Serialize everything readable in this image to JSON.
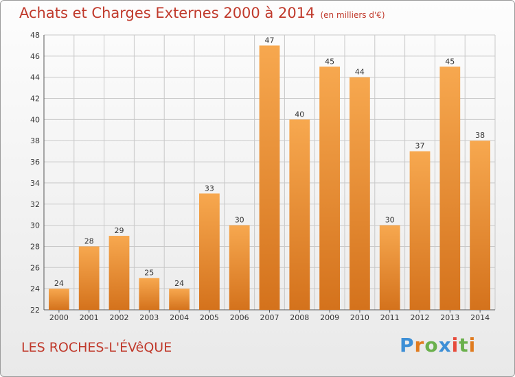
{
  "header": {
    "title": "Achats et Charges Externes 2000 à 2014",
    "subtitle": "(en milliers d'€)"
  },
  "footer": {
    "commune": "LES ROCHES-L'ÉVêQUE",
    "brand": "Proxiti",
    "brand_colors": [
      "#3d8fd6",
      "#e07b1f",
      "#6ab04c",
      "#3d8fd6",
      "#e74c3c",
      "#6ab04c",
      "#e07b1f"
    ]
  },
  "colors": {
    "bar_top": "#f7a84f",
    "bar_bottom": "#d4721c",
    "title": "#c0392b",
    "grid": "#c8c8c8"
  },
  "chart_data": {
    "type": "bar",
    "title": "Achats et Charges Externes 2000 à 2014",
    "subtitle": "(en milliers d'€)",
    "categories": [
      "2000",
      "2001",
      "2002",
      "2003",
      "2004",
      "2005",
      "2006",
      "2007",
      "2008",
      "2009",
      "2010",
      "2011",
      "2012",
      "2013",
      "2014"
    ],
    "values": [
      24,
      28,
      29,
      25,
      24,
      33,
      30,
      47,
      40,
      45,
      44,
      30,
      37,
      45,
      38
    ],
    "xlabel": "",
    "ylabel": "",
    "ylim": [
      22,
      48
    ],
    "yticks": [
      22,
      24,
      26,
      28,
      30,
      32,
      34,
      36,
      38,
      40,
      42,
      44,
      46,
      48
    ],
    "grid": true
  }
}
